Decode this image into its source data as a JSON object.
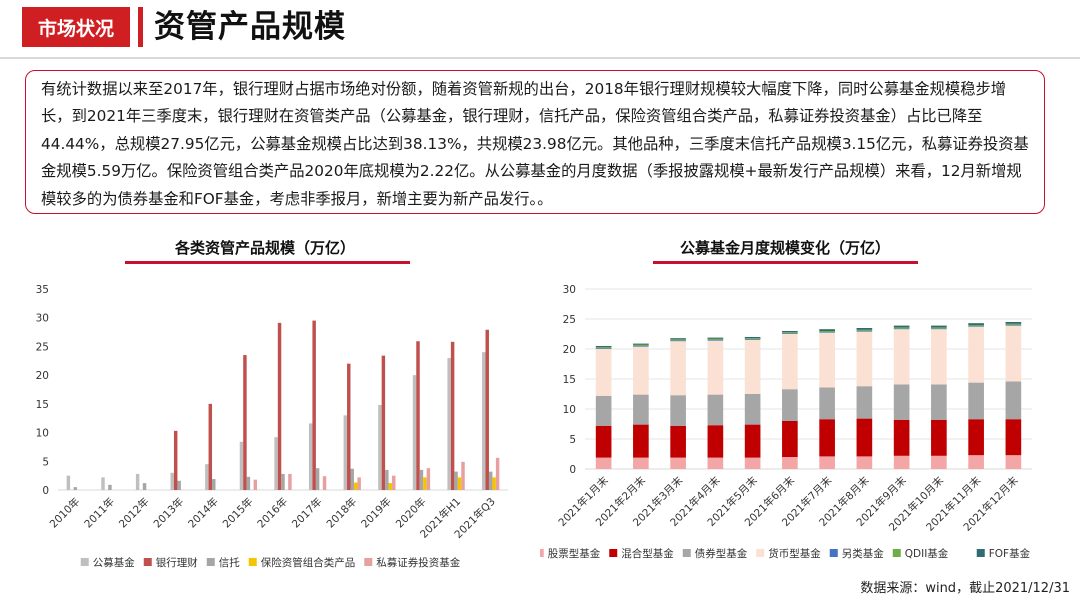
{
  "header": {
    "tag": "市场状况",
    "title": "资管产品规模"
  },
  "summary_text": "有统计数据以来至2017年，银行理财占据市场绝对份额，随着资管新规的出台，2018年银行理财规模较大幅度下降，同时公募基金规模稳步增长，到2021年三季度末，银行理财在资管类产品（公募基金，银行理财，信托产品，保险资管组合类产品，私募证券投资基金）占比已降至44.44%，总规模27.95亿元，公募基金规模占比达到38.13%，共规模23.98亿元。其他品种，三季度末信托产品规模3.15亿元，私募证券投资基金规模5.59万亿。保险资管组合类产品2020年底规模为2.22亿。从公募基金的月度数据（季报披露规模+最新发行产品规模）来看，12月新增规模较多的为债券基金和FOF基金，考虑非季报月，新增主要为新产品发行。。",
  "source": "数据来源：wind，截止2021/12/31",
  "chart_data": [
    {
      "type": "bar",
      "title": "各类资管产品规模（万亿）",
      "categories": [
        "2010年",
        "2011年",
        "2012年",
        "2013年",
        "2014年",
        "2015年",
        "2016年",
        "2017年",
        "2018年",
        "2019年",
        "2020年",
        "2021年H1",
        "2021年Q3"
      ],
      "series": [
        {
          "name": "公募基金",
          "color": "#bfbfbf",
          "values": [
            2.5,
            2.2,
            2.8,
            3.0,
            4.5,
            8.4,
            9.2,
            11.6,
            13.0,
            14.8,
            20.0,
            23.0,
            24.0
          ]
        },
        {
          "name": "银行理财",
          "color": "#c0504d",
          "values": [
            0,
            0,
            0,
            10.3,
            15.0,
            23.5,
            29.1,
            29.5,
            22.0,
            23.4,
            25.9,
            25.8,
            27.9
          ]
        },
        {
          "name": "信托",
          "color": "#a6a6a6",
          "values": [
            0.5,
            0.9,
            1.2,
            1.6,
            1.9,
            2.3,
            2.8,
            3.8,
            3.7,
            3.5,
            3.5,
            3.2,
            3.2
          ]
        },
        {
          "name": "保险资管组合类产品",
          "color": "#f5c400",
          "values": [
            0,
            0,
            0,
            0,
            0,
            0,
            0,
            0,
            1.3,
            1.2,
            2.2,
            2.2,
            2.2
          ]
        },
        {
          "name": "私募证券投资基金",
          "color": "#e6a0a0",
          "values": [
            0,
            0,
            0,
            0,
            0,
            1.8,
            2.8,
            2.4,
            2.2,
            2.5,
            3.8,
            4.9,
            5.6
          ]
        }
      ],
      "ylim": [
        0,
        35
      ],
      "yticks": [
        0,
        5,
        10,
        15,
        20,
        25,
        30,
        35
      ],
      "legend": "bottom"
    },
    {
      "type": "bar",
      "stacked": true,
      "title": "公募基金月度规模变化（万亿）",
      "categories": [
        "2021年1月末",
        "2021年2月末",
        "2021年3月末",
        "2021年4月末",
        "2021年5月末",
        "2021年6月末",
        "2021年7月末",
        "2021年8月末",
        "2021年9月末",
        "2021年10月末",
        "2021年11月末",
        "2021年12月末"
      ],
      "series": [
        {
          "name": "股票型基金",
          "color": "#f4a6a6",
          "values": [
            1.9,
            1.9,
            1.9,
            1.9,
            1.9,
            2.0,
            2.1,
            2.1,
            2.2,
            2.2,
            2.3,
            2.3
          ]
        },
        {
          "name": "混合型基金",
          "color": "#c00000",
          "values": [
            5.3,
            5.5,
            5.3,
            5.4,
            5.5,
            6.0,
            6.2,
            6.3,
            6.0,
            6.0,
            6.0,
            6.0
          ]
        },
        {
          "name": "债券型基金",
          "color": "#a6a6a6",
          "values": [
            5.0,
            5.0,
            5.1,
            5.1,
            5.1,
            5.3,
            5.3,
            5.4,
            5.9,
            5.9,
            6.1,
            6.3
          ]
        },
        {
          "name": "货币型基金",
          "color": "#fbe0d4",
          "values": [
            7.8,
            8.0,
            9.0,
            9.0,
            9.0,
            9.2,
            9.1,
            9.1,
            9.2,
            9.2,
            9.3,
            9.3
          ]
        },
        {
          "name": "另类基金",
          "color": "#4472c4",
          "values": [
            0.1,
            0.1,
            0.1,
            0.1,
            0.1,
            0.1,
            0.1,
            0.1,
            0.1,
            0.1,
            0.1,
            0.1
          ]
        },
        {
          "name": "QDII基金",
          "color": "#70ad47",
          "values": [
            0.2,
            0.2,
            0.2,
            0.2,
            0.2,
            0.2,
            0.2,
            0.2,
            0.2,
            0.2,
            0.2,
            0.2
          ]
        },
        {
          "name": "FOF基金",
          "color": "#2e6b73",
          "values": [
            0.2,
            0.2,
            0.2,
            0.2,
            0.2,
            0.2,
            0.3,
            0.3,
            0.3,
            0.3,
            0.3,
            0.3
          ]
        }
      ],
      "ylim": [
        0,
        30
      ],
      "yticks": [
        0,
        5,
        10,
        15,
        20,
        25,
        30
      ],
      "legend": "bottom"
    }
  ]
}
